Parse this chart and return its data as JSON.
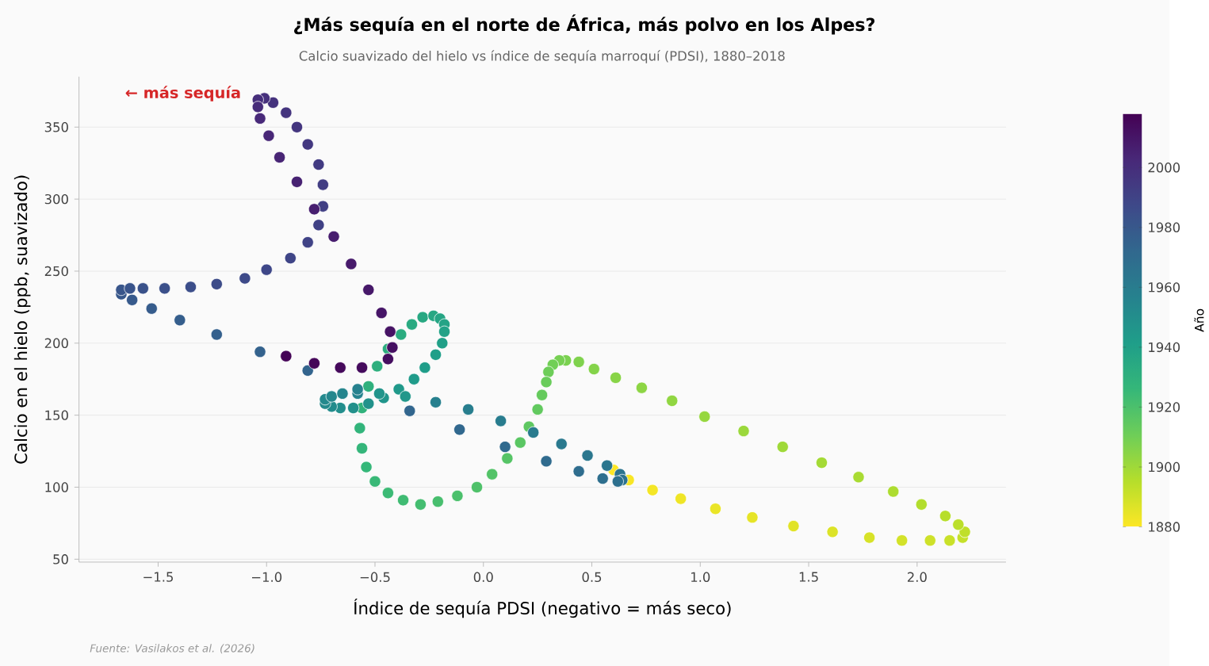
{
  "chart_data": {
    "type": "scatter",
    "title": "¿Más sequía en el norte de África, más polvo en los Alpes?",
    "subtitle": "Calcio suavizado del hielo vs índice de sequía marroquí (PDSI), 1880–2018",
    "xlabel": "Índice de sequía PDSI (negativo = más seco)",
    "ylabel": "Calcio en el hielo (ppb, suavizado)",
    "clabel": "Año",
    "annotations": [
      "← más sequía",
      "Fuente: Vasilakos et al. (2026)"
    ],
    "x": [
      0.6,
      0.67,
      0.78,
      0.91,
      1.07,
      1.24,
      1.43,
      1.61,
      1.78,
      1.93,
      2.06,
      2.15,
      2.21,
      2.22,
      2.19,
      2.13,
      2.02,
      1.89,
      1.73,
      1.56,
      1.38,
      1.2,
      1.02,
      0.87,
      0.73,
      0.61,
      0.51,
      0.44,
      0.38,
      0.35,
      0.32,
      0.3,
      0.29,
      0.27,
      0.25,
      0.21,
      0.17,
      0.11,
      0.04,
      -0.03,
      -0.12,
      -0.21,
      -0.29,
      -0.37,
      -0.44,
      -0.5,
      -0.54,
      -0.56,
      -0.57,
      -0.56,
      -0.53,
      -0.49,
      -0.44,
      -0.38,
      -0.33,
      -0.28,
      -0.23,
      -0.2,
      -0.18,
      -0.18,
      -0.19,
      -0.22,
      -0.27,
      -0.32,
      -0.39,
      -0.36,
      -0.46,
      -0.48,
      -0.53,
      -0.6,
      -0.66,
      -0.7,
      -0.73,
      -0.73,
      -0.7,
      -0.65,
      -0.58,
      -0.58,
      -0.22,
      -0.07,
      0.08,
      0.23,
      0.36,
      0.48,
      0.57,
      0.63,
      0.64,
      0.62,
      0.55,
      0.44,
      0.29,
      0.1,
      -0.11,
      -0.34,
      -0.81,
      -1.03,
      -1.23,
      -1.4,
      -1.53,
      -1.62,
      -1.67,
      -1.67,
      -1.63,
      -1.57,
      -1.47,
      -1.35,
      -1.23,
      -1.1,
      -1.0,
      -0.89,
      -0.81,
      -0.76,
      -0.74,
      -0.74,
      -0.76,
      -0.81,
      -0.86,
      -0.91,
      -0.97,
      -1.01,
      -1.04,
      -1.04,
      -1.03,
      -0.99,
      -0.94,
      -0.86,
      -0.78,
      -0.69,
      -0.61,
      -0.53,
      -0.47,
      -0.43,
      -0.42,
      -0.44,
      -0.56,
      -0.66,
      -0.78,
      -0.91
    ],
    "values": [
      112,
      105,
      98,
      92,
      85,
      79,
      73,
      69,
      65,
      63,
      63,
      63,
      65,
      69,
      74,
      80,
      88,
      97,
      107,
      117,
      128,
      139,
      149,
      160,
      169,
      176,
      182,
      187,
      188,
      188,
      185,
      180,
      173,
      164,
      154,
      142,
      131,
      120,
      109,
      100,
      94,
      90,
      88,
      91,
      96,
      104,
      114,
      127,
      141,
      155,
      170,
      184,
      196,
      206,
      213,
      218,
      219,
      217,
      213,
      208,
      200,
      192,
      183,
      175,
      168,
      163,
      162,
      165,
      158,
      155,
      155,
      156,
      158,
      161,
      163,
      165,
      165,
      168,
      159,
      154,
      146,
      138,
      130,
      122,
      115,
      109,
      105,
      104,
      106,
      111,
      118,
      128,
      140,
      153,
      181,
      194,
      206,
      216,
      224,
      230,
      234,
      237,
      238,
      238,
      238,
      239,
      241,
      245,
      251,
      259,
      270,
      282,
      295,
      310,
      324,
      338,
      350,
      360,
      367,
      370,
      369,
      364,
      356,
      344,
      329,
      312,
      293,
      274,
      255,
      237,
      221,
      208,
      197,
      189,
      183,
      183,
      186,
      191
    ],
    "cvalues": [
      1880,
      1881,
      1882,
      1883,
      1884,
      1885,
      1886,
      1887,
      1888,
      1889,
      1890,
      1891,
      1892,
      1893,
      1894,
      1895,
      1896,
      1897,
      1898,
      1899,
      1900,
      1901,
      1902,
      1903,
      1904,
      1905,
      1906,
      1907,
      1908,
      1909,
      1910,
      1911,
      1912,
      1913,
      1914,
      1915,
      1916,
      1917,
      1918,
      1919,
      1920,
      1921,
      1922,
      1923,
      1924,
      1925,
      1926,
      1927,
      1928,
      1929,
      1930,
      1931,
      1932,
      1933,
      1934,
      1935,
      1936,
      1937,
      1938,
      1939,
      1940,
      1941,
      1942,
      1943,
      1944,
      1945,
      1946,
      1947,
      1948,
      1949,
      1950,
      1951,
      1952,
      1953,
      1954,
      1955,
      1956,
      1957,
      1958,
      1959,
      1960,
      1961,
      1962,
      1963,
      1964,
      1965,
      1966,
      1967,
      1968,
      1969,
      1970,
      1971,
      1972,
      1973,
      1974,
      1975,
      1976,
      1977,
      1978,
      1979,
      1980,
      1981,
      1982,
      1983,
      1984,
      1985,
      1986,
      1987,
      1988,
      1989,
      1990,
      1991,
      1992,
      1993,
      1994,
      1995,
      1996,
      1997,
      1998,
      1999,
      2000,
      2001,
      2002,
      2003,
      2004,
      2005,
      2006,
      2007,
      2008,
      2009,
      2010,
      2011,
      2012,
      2013,
      2014,
      2015,
      2016,
      2017
    ],
    "clim": [
      1880,
      2018
    ],
    "cticks": [
      1880,
      1900,
      1920,
      1940,
      1960,
      1980,
      2000
    ],
    "xlim": [
      -1.865,
      2.41
    ],
    "ylim": [
      48,
      385
    ],
    "xticks": [
      {
        "value": -1.5,
        "label": "−1.5"
      },
      {
        "value": -1.0,
        "label": "−1.0"
      },
      {
        "value": -0.5,
        "label": "−0.5"
      },
      {
        "value": 0.0,
        "label": "0.0"
      },
      {
        "value": 0.5,
        "label": "0.5"
      },
      {
        "value": 1.0,
        "label": "1.0"
      },
      {
        "value": 1.5,
        "label": "1.5"
      },
      {
        "value": 2.0,
        "label": "2.0"
      }
    ],
    "yticks": [
      50,
      100,
      150,
      200,
      250,
      300,
      350
    ],
    "grid": "y",
    "marker": "circle"
  }
}
